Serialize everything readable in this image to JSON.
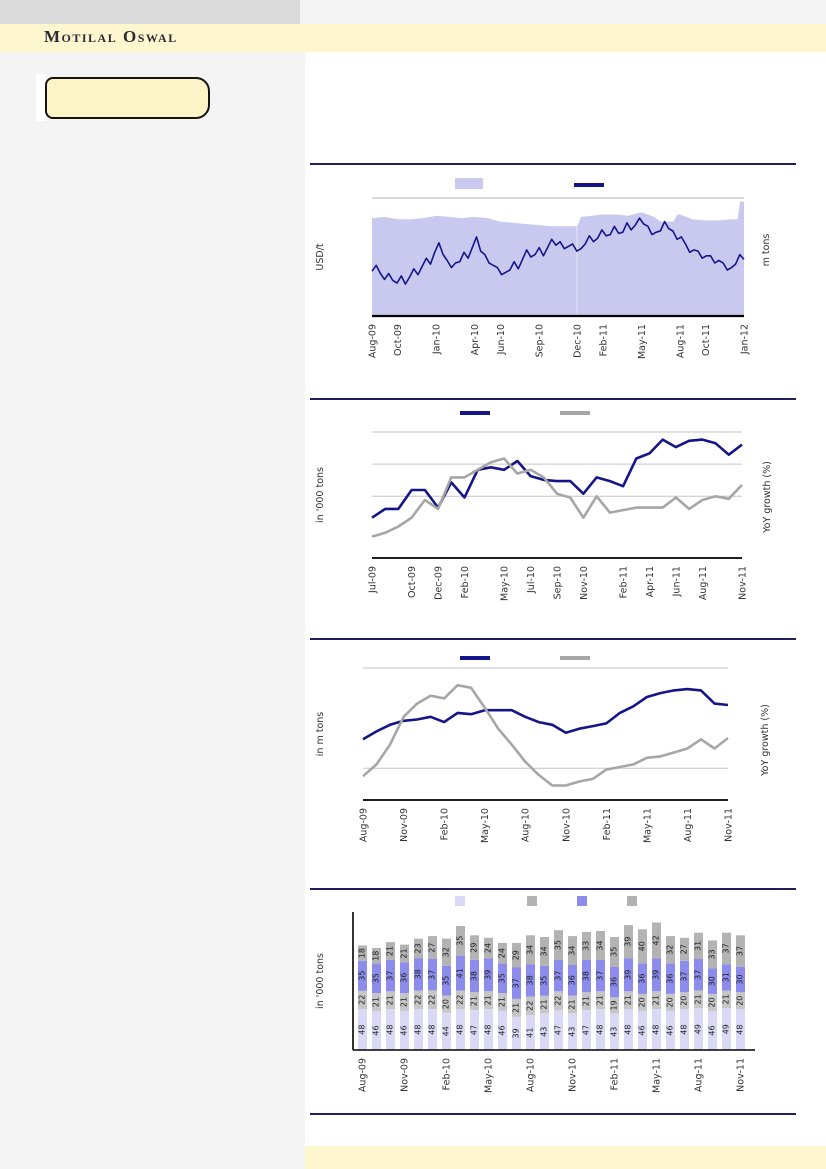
{
  "header": {
    "brand": "Motilal Oswal"
  },
  "colors": {
    "topbar_gray": "#dbdbdb",
    "band_yellow": "#fdf6cf",
    "sidebar_gray": "#f4f4f5",
    "side_box_yellow": "#fcf3c6",
    "rule_navy": "#20205e",
    "line_navy": "#15158a",
    "line_gray": "#a6a6a6",
    "area_lavender": "#c9c9f0",
    "bar_light_lavender": "#d9d9f5",
    "bar_gray_light": "#c6c6c6",
    "bar_purple": "#8c8cec",
    "bar_gray_dark": "#b3b3b3"
  },
  "chart_data": [
    {
      "type": "area",
      "ylabel_left": "USD/t",
      "ylabel_right": "m tons",
      "n_points": 30,
      "tick_labels": [
        "Aug-09",
        "Oct-09",
        "Jan-10",
        "Apr-10",
        "Jun-10",
        "Sep-10",
        "Dec-10",
        "Feb-11",
        "May-11",
        "Aug-11",
        "Oct-11",
        "Jan-12"
      ],
      "tick_positions": [
        0,
        2,
        5,
        8,
        10,
        13,
        16,
        18,
        21,
        24,
        26,
        29
      ],
      "legend": [
        {
          "label": "",
          "shape": "rect",
          "color": "#c9c9f0"
        },
        {
          "label": "",
          "shape": "line",
          "color": "#15158a"
        }
      ],
      "series": [
        {
          "name": "area-band",
          "type": "area",
          "color": "#c9c9f0",
          "xmax": 29,
          "points": [
            [
              0,
              83
            ],
            [
              1,
              84
            ],
            [
              2,
              82
            ],
            [
              3,
              82
            ],
            [
              4,
              83
            ],
            [
              5,
              85
            ],
            [
              6,
              84
            ],
            [
              7,
              83
            ],
            [
              8,
              84
            ],
            [
              9,
              83
            ],
            [
              10,
              80
            ],
            [
              11,
              79
            ],
            [
              12,
              78
            ],
            [
              13,
              77
            ],
            [
              14,
              76
            ],
            [
              15,
              76
            ],
            [
              16,
              76
            ],
            [
              16.3,
              84
            ],
            [
              18,
              86
            ],
            [
              19,
              86
            ],
            [
              20,
              85
            ],
            [
              21,
              88
            ],
            [
              22,
              84
            ],
            [
              22.5,
              80
            ],
            [
              23.5,
              80
            ],
            [
              23.8,
              86
            ],
            [
              24,
              86
            ],
            [
              25,
              82
            ],
            [
              26,
              81
            ],
            [
              27,
              81
            ],
            [
              28,
              82
            ],
            [
              28.5,
              82
            ],
            [
              28.7,
              97
            ],
            [
              29,
              97
            ]
          ]
        },
        {
          "name": "price-line",
          "type": "line",
          "color": "#15158a",
          "width": 1.6,
          "values": [
            38,
            43,
            36,
            31,
            36,
            30,
            28,
            34,
            27,
            33,
            40,
            35,
            42,
            49,
            44,
            54,
            62,
            52,
            47,
            41,
            45,
            46,
            54,
            49,
            58,
            67,
            55,
            52,
            45,
            43,
            41,
            35,
            37,
            39,
            46,
            40,
            48,
            56,
            50,
            52,
            58,
            51,
            58,
            65,
            60,
            63,
            57,
            59,
            61,
            55,
            57,
            61,
            68,
            63,
            66,
            73,
            68,
            69,
            76,
            70,
            71,
            79,
            73,
            77,
            83,
            78,
            76,
            69,
            71,
            72,
            80,
            74,
            72,
            65,
            67,
            61,
            54,
            56,
            55,
            49,
            51,
            51,
            45,
            47,
            45,
            39,
            41,
            44,
            52,
            48
          ]
        }
      ]
    },
    {
      "type": "line",
      "ylabel_left": "in '000 tons",
      "ylabel_right": "YoY growth (%)",
      "n_points": 29,
      "tick_labels": [
        "Jul-09",
        "Oct-09",
        "Dec-09",
        "Feb-10",
        "May-10",
        "Jul-10",
        "Sep-10",
        "Nov-10",
        "Feb-11",
        "Apr-11",
        "Jun-11",
        "Aug-11",
        "Nov-11"
      ],
      "tick_positions": [
        0,
        3,
        5,
        7,
        10,
        12,
        14,
        16,
        19,
        21,
        23,
        25,
        28
      ],
      "legend": [
        {
          "label": "",
          "shape": "line",
          "color": "#15158a"
        },
        {
          "label": "",
          "shape": "line",
          "color": "#a6a6a6"
        }
      ],
      "series": [
        {
          "name": "navy-line",
          "type": "line",
          "color": "#15158a",
          "values": [
            32,
            39,
            39,
            54,
            54,
            40,
            60,
            48,
            70,
            72,
            70,
            77,
            65,
            62,
            61,
            61,
            51,
            64,
            61,
            57,
            79,
            83,
            94,
            88,
            93,
            94,
            91,
            82,
            90
          ]
        },
        {
          "name": "gray-line",
          "type": "line",
          "color": "#a6a6a6",
          "values": [
            17,
            20,
            25,
            32,
            46,
            39,
            64,
            64,
            70,
            76,
            79,
            67,
            70,
            64,
            51,
            48,
            32,
            49,
            36,
            38,
            40,
            40,
            40,
            48,
            39,
            46,
            49,
            47,
            58
          ]
        }
      ]
    },
    {
      "type": "line",
      "ylabel_left": "in m tons",
      "ylabel_right": "YoY growth (%)",
      "n_points": 28,
      "tick_labels": [
        "Aug-09",
        "Nov-09",
        "Feb-10",
        "May-10",
        "Aug-10",
        "Nov-10",
        "Feb-11",
        "May-11",
        "Aug-11",
        "Nov-11"
      ],
      "tick_positions": [
        0,
        3,
        6,
        9,
        12,
        15,
        18,
        21,
        24,
        27
      ],
      "legend": [
        {
          "label": "",
          "shape": "line",
          "color": "#15158a"
        },
        {
          "label": "",
          "shape": "line",
          "color": "#a6a6a6"
        }
      ],
      "series": [
        {
          "name": "navy-line",
          "type": "line",
          "color": "#15158a",
          "values": [
            46,
            52,
            57,
            60,
            61,
            63,
            59,
            66,
            65,
            68,
            68,
            68,
            63,
            59,
            57,
            51,
            54,
            56,
            58,
            66,
            71,
            78,
            81,
            83,
            84,
            83,
            73,
            72
          ]
        },
        {
          "name": "gray-line",
          "type": "line",
          "color": "#a6a6a6",
          "values": [
            18,
            27,
            42,
            63,
            73,
            79,
            77,
            87,
            85,
            70,
            54,
            42,
            29,
            19,
            11,
            11,
            14,
            16,
            23,
            25,
            27,
            32,
            33,
            36,
            39,
            46,
            39,
            47
          ]
        }
      ]
    },
    {
      "type": "stacked-bar",
      "ylabel_left": "in '000 tons",
      "n_points": 28,
      "tick_labels": [
        "Aug-09",
        "Nov-09",
        "Feb-10",
        "May-10",
        "Aug-10",
        "Nov-10",
        "Feb-11",
        "May-11",
        "Aug-11",
        "Nov-11"
      ],
      "tick_positions": [
        0,
        3,
        6,
        9,
        12,
        15,
        18,
        21,
        24,
        27
      ],
      "legend": [
        {
          "label": "",
          "shape": "rect",
          "color": "#d9d9f5"
        },
        {
          "label": "",
          "shape": "rect",
          "color": "#b3b3b3"
        },
        {
          "label": "",
          "shape": "rect",
          "color": "#8c8cec"
        },
        {
          "label": "",
          "shape": "rect",
          "color": "#b3b3b3"
        }
      ],
      "series": [
        {
          "name": "segment-1",
          "color": "#d9d9f5",
          "values": [
            48,
            46,
            48,
            46,
            48,
            48,
            44,
            48,
            47,
            48,
            46,
            39,
            41,
            43,
            47,
            43,
            47,
            48,
            43,
            48,
            46,
            48,
            46,
            48,
            49,
            46,
            49,
            48
          ]
        },
        {
          "name": "segment-2",
          "color": "#c6c6c6",
          "values": [
            22,
            21,
            21,
            21,
            22,
            22,
            20,
            22,
            21,
            21,
            21,
            21,
            22,
            21,
            22,
            21,
            21,
            21,
            19,
            21,
            20,
            21,
            20,
            20,
            21,
            20,
            21,
            20
          ]
        },
        {
          "name": "segment-3",
          "color": "#8c8cec",
          "values": [
            35,
            35,
            37,
            36,
            38,
            37,
            35,
            41,
            38,
            39,
            35,
            37,
            38,
            35,
            37,
            36,
            38,
            37,
            36,
            39,
            36,
            39,
            36,
            37,
            37,
            30,
            31,
            30
          ]
        },
        {
          "name": "segment-4",
          "color": "#b3b3b3",
          "values": [
            18,
            18,
            21,
            21,
            23,
            27,
            32,
            35,
            29,
            24,
            24,
            29,
            34,
            34,
            35,
            34,
            33,
            34,
            35,
            39,
            40,
            42,
            32,
            27,
            31,
            33,
            37,
            37
          ]
        }
      ]
    }
  ]
}
